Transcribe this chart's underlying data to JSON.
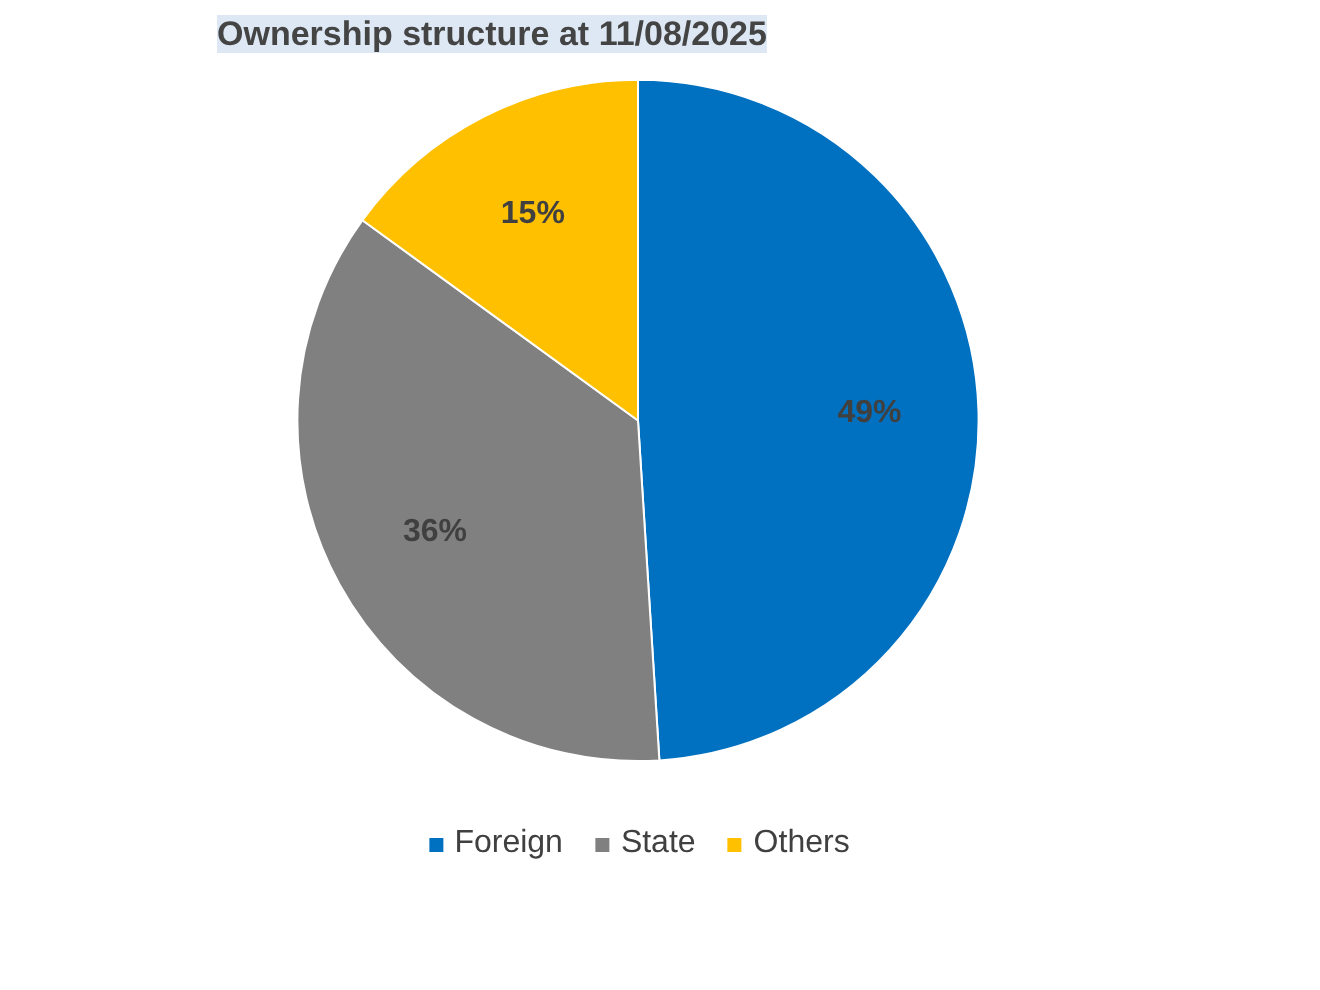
{
  "chart_data": {
    "type": "pie",
    "title": "Ownership structure at 11/08/2025",
    "categories": [
      "Foreign",
      "State",
      "Others"
    ],
    "values": [
      49,
      36,
      15
    ],
    "colors": [
      "#0070c0",
      "#808080",
      "#ffc000"
    ],
    "value_labels": [
      "49%",
      "36%",
      "15%"
    ],
    "legend": "bottom"
  }
}
